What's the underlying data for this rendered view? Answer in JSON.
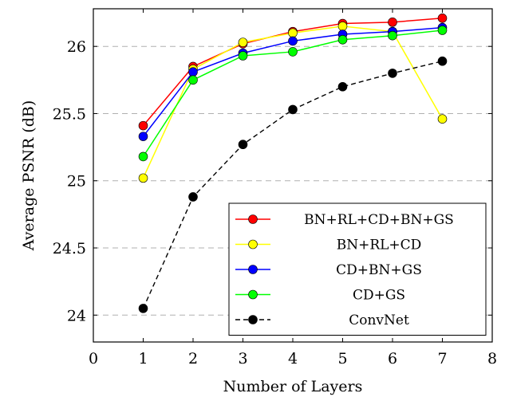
{
  "chart_data": {
    "type": "line",
    "xlabel": "Number of Layers",
    "ylabel": "Average PSNR (dB)",
    "xlim": [
      0,
      8
    ],
    "ylim": [
      23.8,
      26.28
    ],
    "x_ticks": [
      "0",
      "1",
      "2",
      "3",
      "4",
      "5",
      "6",
      "7",
      "8"
    ],
    "y_ticks": [
      "24",
      "24.5",
      "25",
      "25.5",
      "26"
    ],
    "grid": "horizontal-dashed",
    "legend_position": "bottom-right",
    "x": [
      1,
      2,
      3,
      4,
      5,
      6,
      7
    ],
    "series": [
      {
        "name": "BN+RL+CD+BN+GS",
        "color": "#ff0000",
        "style": "solid",
        "values": [
          25.41,
          25.85,
          26.02,
          26.11,
          26.17,
          26.18,
          26.21
        ]
      },
      {
        "name": "BN+RL+CD",
        "color": "#ffff00",
        "style": "solid",
        "values": [
          25.02,
          25.83,
          26.03,
          26.1,
          26.15,
          26.11,
          25.46
        ]
      },
      {
        "name": "CD+BN+GS",
        "color": "#0000ff",
        "style": "solid",
        "values": [
          25.33,
          25.81,
          25.95,
          26.04,
          26.09,
          26.11,
          26.14
        ]
      },
      {
        "name": "CD+GS",
        "color": "#00ff00",
        "style": "solid",
        "values": [
          25.18,
          25.75,
          25.93,
          25.96,
          26.05,
          26.08,
          26.12
        ]
      },
      {
        "name": "ConvNet",
        "color": "#000000",
        "style": "dashed",
        "values": [
          24.05,
          24.88,
          25.27,
          25.53,
          25.7,
          25.8,
          25.89
        ]
      }
    ]
  }
}
